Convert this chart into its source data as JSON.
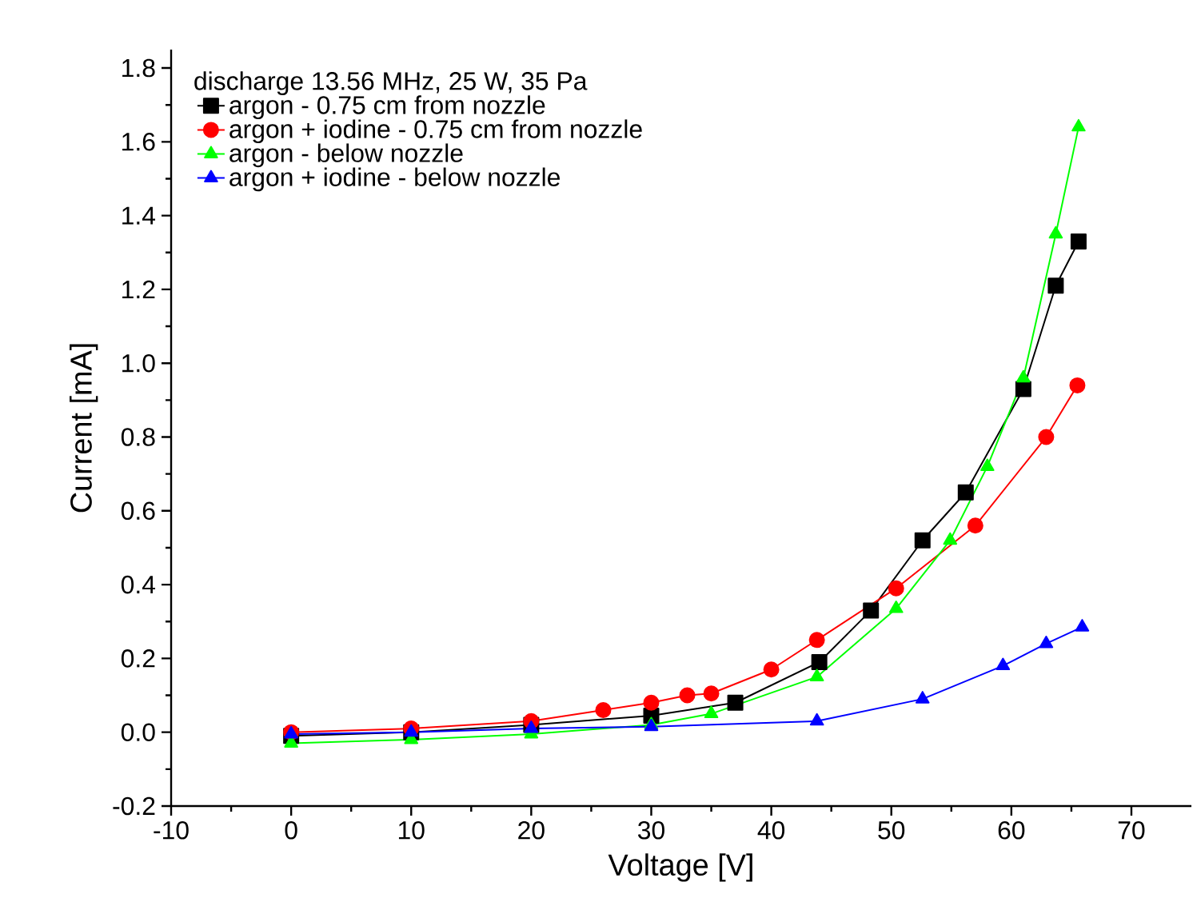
{
  "chart_data": {
    "type": "line",
    "xlabel": "Voltage [V]",
    "ylabel": "Current [mA]",
    "legend_title": "discharge 13.56 MHz, 25 W, 35 Pa",
    "legend": "top left",
    "grid": false,
    "xlim": [
      -10,
      75
    ],
    "xticks": [
      -10,
      0,
      10,
      20,
      30,
      40,
      50,
      60,
      70
    ],
    "ylim": [
      -0.2,
      1.85
    ],
    "yticks": [
      -0.2,
      {
        "value": 0,
        "label": "0.0"
      },
      0.2,
      0.4,
      0.6,
      0.8,
      {
        "value": 1,
        "label": "1.0"
      },
      1.2,
      1.4,
      1.6,
      1.8
    ],
    "series": [
      {
        "name": "argon - 0.75 cm from nozzle",
        "color": "#000000",
        "marker": "square",
        "x": [
          0,
          10,
          20,
          30,
          37,
          44,
          48.3,
          52.6,
          56.2,
          61,
          63.7,
          65.6
        ],
        "values": [
          -0.01,
          0.0,
          0.02,
          0.045,
          0.08,
          0.19,
          0.33,
          0.52,
          0.65,
          0.93,
          1.21,
          1.33
        ]
      },
      {
        "name": "argon + iodine - 0.75 cm from nozzle",
        "color": "#ff0000",
        "marker": "circle",
        "x": [
          0,
          10,
          20,
          26,
          30,
          33,
          35,
          40,
          43.8,
          50.4,
          57,
          62.9,
          65.5
        ],
        "values": [
          0.0,
          0.01,
          0.03,
          0.06,
          0.08,
          0.1,
          0.105,
          0.17,
          0.25,
          0.39,
          0.56,
          0.8,
          0.94
        ]
      },
      {
        "name": "argon - below nozzle",
        "color": "#00ff00",
        "marker": "triangle",
        "x": [
          0,
          10,
          20,
          30,
          35,
          43.8,
          50.4,
          54.9,
          58,
          61,
          63.7,
          65.6
        ],
        "values": [
          -0.03,
          -0.02,
          -0.005,
          0.02,
          0.05,
          0.15,
          0.335,
          0.52,
          0.72,
          0.96,
          1.35,
          1.64
        ]
      },
      {
        "name": "argon + iodine - below nozzle",
        "color": "#0000ff",
        "marker": "triangle",
        "x": [
          0,
          10,
          20,
          30,
          43.8,
          52.6,
          59.3,
          62.9,
          65.9
        ],
        "values": [
          -0.005,
          0.0,
          0.01,
          0.015,
          0.03,
          0.09,
          0.18,
          0.24,
          0.285
        ]
      }
    ]
  }
}
